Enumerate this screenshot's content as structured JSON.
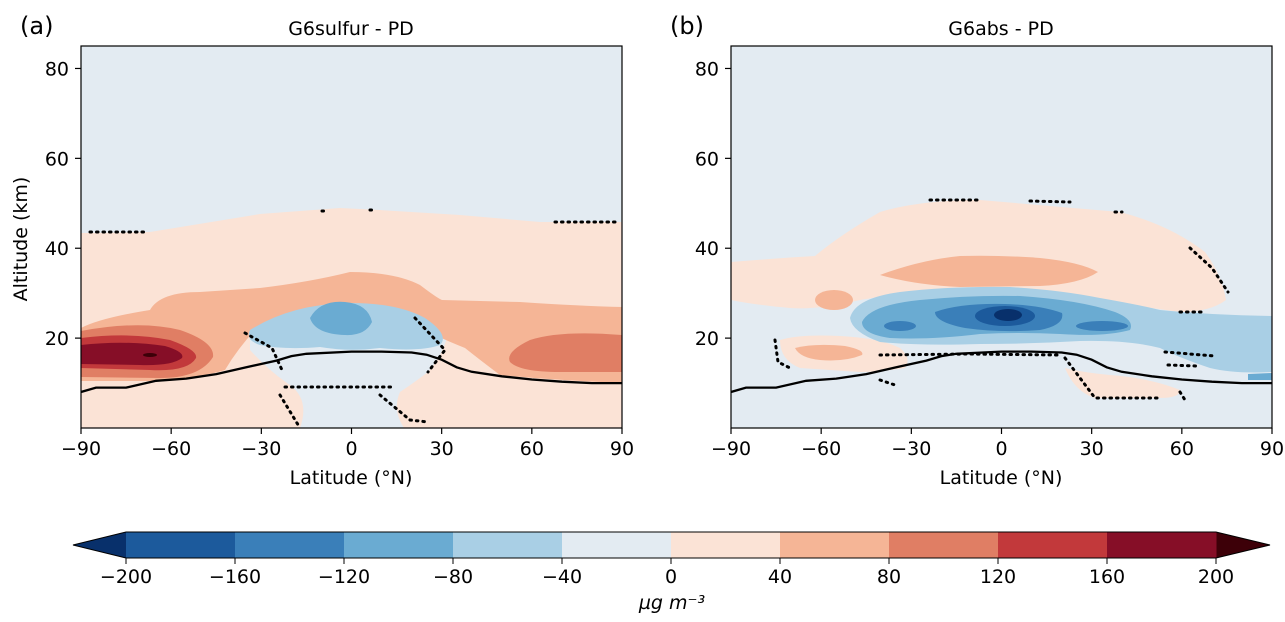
{
  "figure": {
    "colorbar_label": "µg m⁻³"
  },
  "chart_data": [
    {
      "type": "contour",
      "panel_label": "(a)",
      "title": "G6sulfur - PD",
      "xlabel": "Latitude (°N)",
      "ylabel": "Altitude (km)",
      "xlim": [
        -90,
        90
      ],
      "ylim": [
        0,
        85
      ],
      "xticks": [
        -90,
        -60,
        -30,
        0,
        30,
        60,
        90
      ],
      "yticks": [
        20,
        40,
        60,
        80
      ],
      "background_level": "-40 to 0",
      "levels_shown": [
        {
          "range": "-40 to 0",
          "region": "upper atmosphere above ~48 km and equatorial column below ~30 km"
        },
        {
          "range": "0 to 40",
          "region": "broad band 10–48 km"
        },
        {
          "range": "40 to 80",
          "region": "layer ~14–30 km, strongest in southern hemisphere"
        },
        {
          "range": "80 to 120",
          "region": "high-latitude lobes ~12–22 km (60–90°S and 55–90°N)"
        },
        {
          "range": "120 to 160",
          "region": "southern lobe ~14–20 km near 60–90°S"
        },
        {
          "range": "160 to 200",
          "region": "core near 65°S, 16 km"
        },
        {
          "range": "-80 to -40",
          "region": "equatorial ring ~18–32 km"
        },
        {
          "range": "-120 to -80",
          "region": "equatorial core ~22–28 km"
        }
      ],
      "tropopause": {
        "lat": [
          -90,
          -85,
          -75,
          -65,
          -55,
          -45,
          -35,
          -25,
          -20,
          -15,
          0,
          10,
          20,
          25,
          30,
          35,
          40,
          50,
          60,
          70,
          80,
          90
        ],
        "alt": [
          8,
          9,
          9,
          10.5,
          11,
          12,
          13.5,
          15,
          16,
          16.5,
          17,
          17,
          16.8,
          16.3,
          15.2,
          13.5,
          12.5,
          11.5,
          10.8,
          10.3,
          10,
          10
        ]
      },
      "significance": "dotted contours mark regions of non-significance"
    },
    {
      "type": "contour",
      "panel_label": "(b)",
      "title": "G6abs - PD",
      "xlabel": "Latitude (°N)",
      "ylabel": "",
      "xlim": [
        -90,
        90
      ],
      "ylim": [
        0,
        85
      ],
      "xticks": [
        -90,
        -60,
        -30,
        0,
        30,
        60,
        90
      ],
      "yticks": [
        20,
        40,
        60,
        80
      ],
      "background_level": "-40 to 0",
      "levels_shown": [
        {
          "range": "0 to 40",
          "region": "layer ~28–50 km and patches near tropopause"
        },
        {
          "range": "40 to 80",
          "region": "band ~31–38 km and small patches ~17–19 km"
        },
        {
          "range": "-80 to -40",
          "region": "broad band ~20–30 km extending north"
        },
        {
          "range": "-120 to -80",
          "region": "band ~22–29 km"
        },
        {
          "range": "-160 to -120",
          "region": "core ~23–28 km near 0°"
        },
        {
          "range": "-200 to -160",
          "region": "core near 3°N, 25 km"
        }
      ],
      "tropopause": {
        "lat": [
          -90,
          -85,
          -75,
          -65,
          -55,
          -45,
          -35,
          -25,
          -20,
          -15,
          0,
          10,
          20,
          25,
          30,
          35,
          40,
          50,
          60,
          70,
          80,
          90
        ],
        "alt": [
          8,
          9,
          9,
          10.5,
          11,
          12,
          13.5,
          15,
          16,
          16.5,
          17,
          17,
          16.8,
          16.3,
          15.2,
          13.5,
          12.5,
          11.5,
          10.8,
          10.3,
          10,
          10
        ]
      },
      "significance": "dotted contours mark regions of non-significance"
    }
  ],
  "colorbar": {
    "extend": "both",
    "boundaries": [
      -200,
      -160,
      -120,
      -80,
      -40,
      0,
      40,
      80,
      120,
      160,
      200
    ],
    "tick_labels": [
      "−200",
      "−160",
      "−120",
      "−80",
      "−40",
      "0",
      "40",
      "80",
      "120",
      "160",
      "200"
    ],
    "colors": [
      "#08306b",
      "#1c5a9c",
      "#3a7fb9",
      "#6aabd2",
      "#a9cfe5",
      "#e3ebf2",
      "#fbe3d6",
      "#f5b596",
      "#e07e64",
      "#c2393b",
      "#860e27",
      "#3d0008"
    ]
  }
}
